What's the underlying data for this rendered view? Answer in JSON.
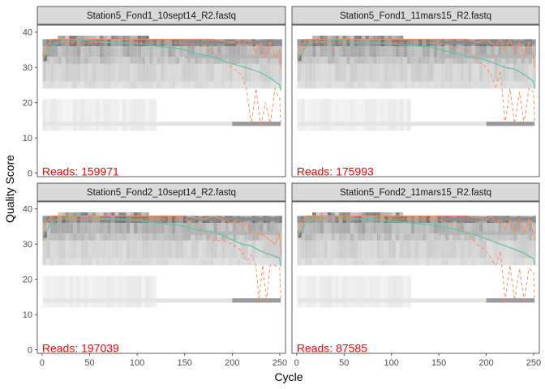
{
  "chart_data": {
    "type": "heatmap",
    "xlabel": "Cycle",
    "ylabel": "Quality Score",
    "xlim": [
      -5,
      256
    ],
    "ylim": [
      -1,
      42
    ],
    "x_ticks": [
      0,
      50,
      100,
      150,
      200,
      250
    ],
    "y_ticks": [
      0,
      10,
      20,
      30,
      40
    ],
    "x_tick_labels": [
      "0",
      "50",
      "100",
      "150",
      "200",
      "250"
    ],
    "y_tick_labels": [
      "0",
      "10",
      "20",
      "30",
      "40"
    ],
    "grid": false,
    "legend": "none",
    "reads_prefix": "Reads:",
    "colors": {
      "mean_line": "#66c2a5",
      "quartile_lines": "#fc8d62",
      "reads_text": "#ff0000",
      "strip_fill": "#d9d9d9",
      "heatmap_low": "#f2f2f2",
      "heatmap_high": "#000000"
    },
    "panels": [
      {
        "title": "Station5_Fond1_10sept14_R2.fastq",
        "reads": "159971",
        "mean": [
          [
            1,
            32.5
          ],
          [
            5,
            34
          ],
          [
            10,
            36
          ],
          [
            20,
            37.5
          ],
          [
            30,
            37.2
          ],
          [
            40,
            38
          ],
          [
            50,
            37.6
          ],
          [
            60,
            37.3
          ],
          [
            80,
            37
          ],
          [
            100,
            36.8
          ],
          [
            120,
            36
          ],
          [
            140,
            35.5
          ],
          [
            150,
            35
          ],
          [
            160,
            34
          ],
          [
            170,
            33.5
          ],
          [
            180,
            33
          ],
          [
            190,
            32
          ],
          [
            200,
            31
          ],
          [
            210,
            30.3
          ],
          [
            220,
            29.5
          ],
          [
            230,
            28.5
          ],
          [
            240,
            27
          ],
          [
            245,
            26
          ],
          [
            250,
            25
          ],
          [
            251,
            23.5
          ]
        ],
        "median": [
          [
            1,
            33
          ],
          [
            5,
            36
          ],
          [
            10,
            38
          ],
          [
            20,
            38
          ],
          [
            50,
            38
          ],
          [
            100,
            38
          ],
          [
            150,
            38
          ],
          [
            180,
            38
          ],
          [
            200,
            37
          ],
          [
            205,
            38
          ],
          [
            210,
            36
          ],
          [
            215,
            38
          ],
          [
            220,
            37
          ],
          [
            225,
            34
          ],
          [
            230,
            37
          ],
          [
            235,
            33
          ],
          [
            240,
            37
          ],
          [
            245,
            33
          ],
          [
            250,
            35
          ],
          [
            251,
            30
          ]
        ],
        "q25": [
          [
            1,
            32
          ],
          [
            5,
            34
          ],
          [
            10,
            37
          ],
          [
            50,
            37
          ],
          [
            100,
            37
          ],
          [
            150,
            37
          ],
          [
            170,
            36
          ],
          [
            180,
            34
          ],
          [
            190,
            32
          ],
          [
            200,
            30
          ],
          [
            210,
            28
          ],
          [
            215,
            24
          ],
          [
            220,
            14
          ],
          [
            225,
            24
          ],
          [
            230,
            13
          ],
          [
            235,
            20
          ],
          [
            240,
            14
          ],
          [
            245,
            24
          ],
          [
            250,
            21
          ],
          [
            251,
            14
          ]
        ]
      },
      {
        "title": "Station5_Fond1_11mars15_R2.fastq",
        "reads": "175993",
        "mean": [
          [
            1,
            32.5
          ],
          [
            5,
            34
          ],
          [
            10,
            36
          ],
          [
            20,
            37.5
          ],
          [
            30,
            37.2
          ],
          [
            40,
            38
          ],
          [
            50,
            37.5
          ],
          [
            60,
            37.2
          ],
          [
            80,
            37
          ],
          [
            100,
            36.8
          ],
          [
            120,
            36.2
          ],
          [
            140,
            35.8
          ],
          [
            150,
            35.2
          ],
          [
            160,
            34.5
          ],
          [
            170,
            34
          ],
          [
            180,
            33
          ],
          [
            190,
            32.8
          ],
          [
            200,
            32
          ],
          [
            210,
            31
          ],
          [
            220,
            30
          ],
          [
            230,
            29.5
          ],
          [
            240,
            28
          ],
          [
            245,
            27
          ],
          [
            250,
            26
          ],
          [
            251,
            24
          ]
        ],
        "median": [
          [
            1,
            33
          ],
          [
            5,
            36
          ],
          [
            10,
            38
          ],
          [
            50,
            38
          ],
          [
            100,
            38
          ],
          [
            150,
            38
          ],
          [
            180,
            38
          ],
          [
            190,
            37
          ],
          [
            200,
            38
          ],
          [
            210,
            36
          ],
          [
            215,
            38
          ],
          [
            220,
            35
          ],
          [
            225,
            38
          ],
          [
            230,
            34
          ],
          [
            235,
            37
          ],
          [
            240,
            33
          ],
          [
            245,
            37
          ],
          [
            250,
            33
          ],
          [
            251,
            30
          ]
        ],
        "q25": [
          [
            1,
            32
          ],
          [
            5,
            34
          ],
          [
            10,
            37
          ],
          [
            50,
            37
          ],
          [
            100,
            37
          ],
          [
            150,
            37
          ],
          [
            180,
            35
          ],
          [
            190,
            32
          ],
          [
            200,
            30
          ],
          [
            205,
            28
          ],
          [
            210,
            24
          ],
          [
            215,
            29
          ],
          [
            220,
            14
          ],
          [
            225,
            24
          ],
          [
            230,
            14
          ],
          [
            235,
            23
          ],
          [
            240,
            14
          ],
          [
            245,
            24
          ],
          [
            250,
            23
          ],
          [
            251,
            14
          ]
        ]
      },
      {
        "title": "Station5_Fond2_10sept14_R2.fastq",
        "reads": "197039",
        "mean": [
          [
            1,
            32.5
          ],
          [
            5,
            34
          ],
          [
            10,
            36
          ],
          [
            20,
            37.5
          ],
          [
            30,
            37.2
          ],
          [
            40,
            38
          ],
          [
            50,
            37.6
          ],
          [
            60,
            37.3
          ],
          [
            80,
            37
          ],
          [
            100,
            36.8
          ],
          [
            120,
            36
          ],
          [
            140,
            35.5
          ],
          [
            150,
            35
          ],
          [
            160,
            34.2
          ],
          [
            170,
            33.8
          ],
          [
            180,
            33.5
          ],
          [
            190,
            32.5
          ],
          [
            200,
            31.2
          ],
          [
            210,
            30
          ],
          [
            220,
            29.5
          ],
          [
            230,
            28
          ],
          [
            240,
            27
          ],
          [
            245,
            26.5
          ],
          [
            250,
            26
          ],
          [
            251,
            23.5
          ]
        ],
        "median": [
          [
            1,
            33
          ],
          [
            5,
            36
          ],
          [
            10,
            38
          ],
          [
            50,
            38
          ],
          [
            100,
            38
          ],
          [
            150,
            38
          ],
          [
            170,
            37
          ],
          [
            180,
            38
          ],
          [
            190,
            37
          ],
          [
            200,
            36
          ],
          [
            205,
            37
          ],
          [
            210,
            35
          ],
          [
            215,
            36
          ],
          [
            220,
            33
          ],
          [
            230,
            33
          ],
          [
            240,
            31
          ],
          [
            245,
            30
          ],
          [
            250,
            33
          ],
          [
            251,
            27
          ]
        ],
        "q25": [
          [
            1,
            32
          ],
          [
            5,
            34
          ],
          [
            10,
            37
          ],
          [
            50,
            37
          ],
          [
            100,
            37
          ],
          [
            150,
            37
          ],
          [
            170,
            34
          ],
          [
            180,
            31
          ],
          [
            190,
            31
          ],
          [
            200,
            30
          ],
          [
            210,
            28
          ],
          [
            215,
            25
          ],
          [
            220,
            27
          ],
          [
            225,
            24
          ],
          [
            228,
            14
          ],
          [
            232,
            24
          ],
          [
            236,
            14
          ],
          [
            240,
            24
          ],
          [
            245,
            24
          ],
          [
            250,
            23
          ],
          [
            251,
            14
          ]
        ]
      },
      {
        "title": "Station5_Fond2_11mars15_R2.fastq",
        "reads": "87585",
        "mean": [
          [
            1,
            32.5
          ],
          [
            5,
            34
          ],
          [
            10,
            36
          ],
          [
            20,
            37.5
          ],
          [
            30,
            37.2
          ],
          [
            40,
            38
          ],
          [
            50,
            37.5
          ],
          [
            60,
            37.2
          ],
          [
            80,
            37
          ],
          [
            100,
            36.5
          ],
          [
            120,
            36
          ],
          [
            140,
            35.5
          ],
          [
            150,
            35
          ],
          [
            160,
            34.5
          ],
          [
            170,
            34
          ],
          [
            180,
            33.2
          ],
          [
            190,
            32.5
          ],
          [
            200,
            31.5
          ],
          [
            210,
            30.5
          ],
          [
            220,
            29.5
          ],
          [
            230,
            28.5
          ],
          [
            240,
            27.5
          ],
          [
            245,
            26.5
          ],
          [
            250,
            26
          ],
          [
            251,
            24
          ]
        ],
        "median": [
          [
            1,
            33
          ],
          [
            5,
            36
          ],
          [
            10,
            38
          ],
          [
            50,
            38
          ],
          [
            100,
            38
          ],
          [
            150,
            38
          ],
          [
            180,
            38
          ],
          [
            200,
            37
          ],
          [
            205,
            38
          ],
          [
            210,
            36
          ],
          [
            215,
            37
          ],
          [
            220,
            34
          ],
          [
            225,
            37
          ],
          [
            230,
            33
          ],
          [
            235,
            37
          ],
          [
            240,
            33
          ],
          [
            245,
            37
          ],
          [
            250,
            33
          ],
          [
            251,
            31
          ]
        ],
        "q25": [
          [
            1,
            32
          ],
          [
            5,
            34
          ],
          [
            10,
            37
          ],
          [
            50,
            37
          ],
          [
            100,
            37
          ],
          [
            150,
            37
          ],
          [
            170,
            35
          ],
          [
            180,
            33
          ],
          [
            190,
            30
          ],
          [
            200,
            28
          ],
          [
            205,
            26
          ],
          [
            210,
            24
          ],
          [
            215,
            28
          ],
          [
            220,
            14
          ],
          [
            225,
            24
          ],
          [
            230,
            14
          ],
          [
            235,
            23
          ],
          [
            240,
            14
          ],
          [
            245,
            23
          ],
          [
            250,
            22
          ],
          [
            251,
            14
          ]
        ]
      }
    ]
  }
}
